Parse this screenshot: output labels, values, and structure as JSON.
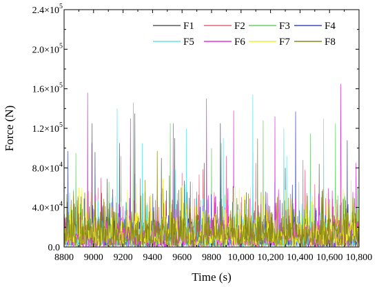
{
  "chart_data": {
    "type": "line",
    "xlabel": "Time (s)",
    "ylabel": "Force (N)",
    "xlim": [
      8800,
      10800
    ],
    "ylim": [
      0,
      240000
    ],
    "x_ticks": [
      {
        "value": 8800,
        "label": "8800"
      },
      {
        "value": 9000,
        "label": "9000"
      },
      {
        "value": 9200,
        "label": "9200"
      },
      {
        "value": 9400,
        "label": "9400"
      },
      {
        "value": 9600,
        "label": "9600"
      },
      {
        "value": 9800,
        "label": "9800"
      },
      {
        "value": 10000,
        "label": "10,000"
      },
      {
        "value": 10200,
        "label": "10,200"
      },
      {
        "value": 10400,
        "label": "10,400"
      },
      {
        "value": 10600,
        "label": "10,600"
      },
      {
        "value": 10800,
        "label": "10,800"
      }
    ],
    "y_ticks": [
      {
        "value": 0,
        "mant": "0.0",
        "exp": ""
      },
      {
        "value": 40000,
        "mant": "4.0×10",
        "exp": "4"
      },
      {
        "value": 80000,
        "mant": "8.0×10",
        "exp": "4"
      },
      {
        "value": 120000,
        "mant": "1.2×10",
        "exp": "5"
      },
      {
        "value": 160000,
        "mant": "1.6×10",
        "exp": "5"
      },
      {
        "value": 200000,
        "mant": "2.0×10",
        "exp": "5"
      },
      {
        "value": 240000,
        "mant": "2.4×10",
        "exp": "5"
      }
    ],
    "legend_position": "top-right",
    "grid": false,
    "series": [
      {
        "name": "F1",
        "color": "#5a5a5a",
        "peaks": [
          [
            8990,
            125000
          ],
          [
            9175,
            105000
          ],
          [
            9460,
            90000
          ],
          [
            9750,
            85000
          ],
          [
            10080,
            95000
          ],
          [
            10300,
            80000
          ],
          [
            10530,
            84000
          ]
        ]
      },
      {
        "name": "F2",
        "color": "#e8607a",
        "peaks": [
          [
            9050,
            70000
          ],
          [
            9250,
            90000
          ],
          [
            9600,
            75000
          ],
          [
            9900,
            92000
          ],
          [
            10100,
            85000
          ],
          [
            10420,
            88000
          ],
          [
            10680,
            80000
          ]
        ]
      },
      {
        "name": "F3",
        "color": "#66d066",
        "peaks": [
          [
            8880,
            95000
          ],
          [
            9270,
            146000
          ],
          [
            9520,
            125000
          ],
          [
            9800,
            100000
          ],
          [
            10150,
            128000
          ],
          [
            10470,
            115000
          ],
          [
            10640,
            125000
          ]
        ]
      },
      {
        "name": "F4",
        "color": "#3a4bc0",
        "peaks": [
          [
            8825,
            97000
          ],
          [
            9010,
            96000
          ],
          [
            9280,
            135000
          ],
          [
            9550,
            110000
          ],
          [
            9860,
            125000
          ],
          [
            10370,
            137000
          ],
          [
            10720,
            108000
          ]
        ]
      },
      {
        "name": "F5",
        "color": "#60e4f0",
        "peaks": [
          [
            9160,
            140000
          ],
          [
            9330,
            105000
          ],
          [
            9630,
            120000
          ],
          [
            9880,
            110000
          ],
          [
            10080,
            154000
          ],
          [
            10290,
            120000
          ],
          [
            10560,
            130000
          ]
        ]
      },
      {
        "name": "F6",
        "color": "#e030e0",
        "peaks": [
          [
            8960,
            156000
          ],
          [
            9250,
            130000
          ],
          [
            9540,
            125000
          ],
          [
            9765,
            150000
          ],
          [
            9950,
            138000
          ],
          [
            10230,
            132000
          ],
          [
            10675,
            165000
          ],
          [
            10780,
            85000
          ]
        ]
      },
      {
        "name": "F7",
        "color": "#f2f230",
        "peaks": [
          [
            8900,
            60000
          ],
          [
            9230,
            58000
          ],
          [
            9600,
            62000
          ],
          [
            9950,
            60000
          ],
          [
            10300,
            58000
          ],
          [
            10700,
            55000
          ]
        ]
      },
      {
        "name": "F8",
        "color": "#8a8a18",
        "peaks": [
          [
            8940,
            55000
          ],
          [
            9320,
            52000
          ],
          [
            9700,
            56000
          ],
          [
            10050,
            54000
          ],
          [
            10450,
            52000
          ],
          [
            10760,
            50000
          ]
        ]
      }
    ]
  }
}
